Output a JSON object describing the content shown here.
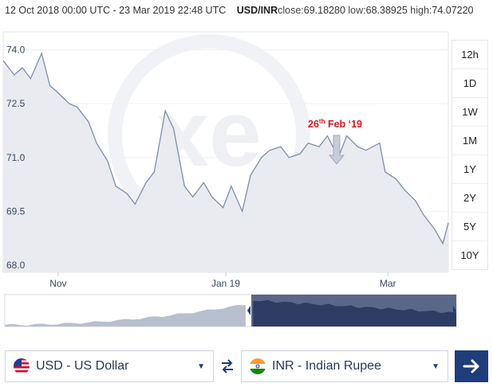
{
  "header": {
    "range": "12 Oct 2018 00:00 UTC - 23 Mar 2019 22:48 UTC",
    "pair": "USD/INR",
    "close_label": "close:",
    "close": "69.18280",
    "low_label": "low:",
    "low": "68.38925",
    "high_label": "high:",
    "high": "74.07220"
  },
  "periods": [
    "12h",
    "1D",
    "1W",
    "1M",
    "1Y",
    "2Y",
    "5Y",
    "10Y"
  ],
  "annotation": {
    "day": "26",
    "suffix": "th",
    "rest": " Feb ‘19"
  },
  "watermark": "xe",
  "colors": {
    "line": "#7f8fa8",
    "fill": "#e9ebf1",
    "accent": "#1e3d7b",
    "annotation": "#d9141e",
    "nav_dark": "#5b6789",
    "nav_light": "#b8bfcf"
  },
  "converter": {
    "from": {
      "label": "USD - US Dollar",
      "flag": "us-flag-icon"
    },
    "to": {
      "label": "INR - Indian Rupee",
      "flag": "india-flag-icon"
    }
  },
  "chart_data": {
    "type": "area",
    "x": [
      "2018-10-12",
      "2018-10-16",
      "2018-10-19",
      "2018-10-22",
      "2018-10-26",
      "2018-10-29",
      "2018-11-01",
      "2018-11-05",
      "2018-11-08",
      "2018-11-12",
      "2018-11-15",
      "2018-11-19",
      "2018-11-22",
      "2018-11-26",
      "2018-11-29",
      "2018-12-03",
      "2018-12-06",
      "2018-12-10",
      "2018-12-13",
      "2018-12-17",
      "2018-12-20",
      "2018-12-24",
      "2018-12-27",
      "2018-12-31",
      "2019-01-03",
      "2019-01-07",
      "2019-01-10",
      "2019-01-14",
      "2019-01-17",
      "2019-01-21",
      "2019-01-24",
      "2019-01-28",
      "2019-01-31",
      "2019-02-04",
      "2019-02-07",
      "2019-02-11",
      "2019-02-14",
      "2019-02-18",
      "2019-02-21",
      "2019-02-26",
      "2019-02-28",
      "2019-03-04",
      "2019-03-07",
      "2019-03-11",
      "2019-03-14",
      "2019-03-18",
      "2019-03-21",
      "2019-03-23"
    ],
    "y": [
      73.7,
      73.3,
      73.5,
      73.2,
      73.9,
      73.0,
      72.8,
      72.5,
      72.4,
      72.0,
      71.4,
      70.9,
      70.2,
      70.0,
      69.7,
      70.3,
      70.6,
      72.3,
      71.8,
      70.2,
      69.9,
      70.3,
      69.9,
      69.6,
      70.2,
      69.5,
      70.5,
      71.0,
      71.2,
      71.3,
      71.0,
      71.1,
      71.4,
      71.3,
      71.6,
      71.0,
      71.6,
      71.3,
      71.2,
      71.4,
      70.6,
      70.4,
      70.1,
      69.8,
      69.4,
      69.0,
      68.6,
      69.18
    ],
    "xlabels": [
      "Nov",
      "Jan 19",
      "Mar"
    ],
    "yticks": [
      "74.0",
      "72.5",
      "71.0",
      "69.5",
      "68.0"
    ],
    "ylim": [
      67.8,
      74.5
    ]
  }
}
